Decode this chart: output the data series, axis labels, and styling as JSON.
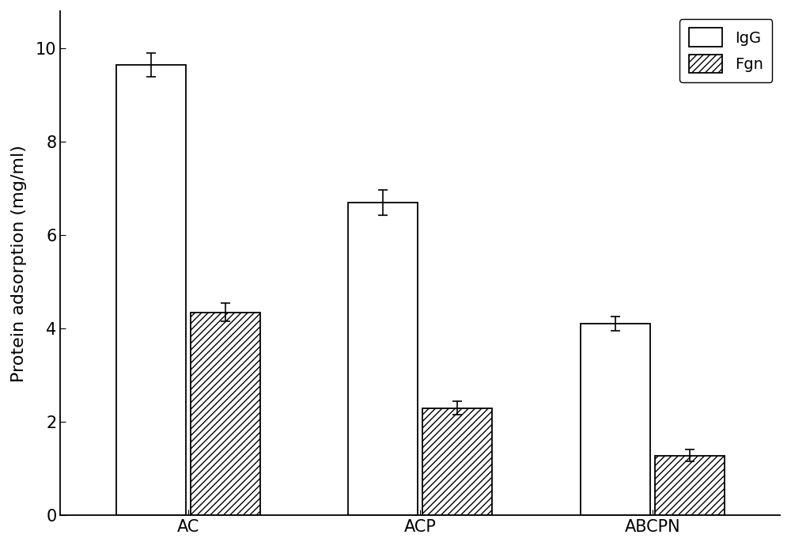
{
  "categories": [
    "AC",
    "ACP",
    "ABCPN"
  ],
  "IgG_values": [
    9.65,
    6.7,
    4.1
  ],
  "IgG_errors": [
    0.25,
    0.27,
    0.15
  ],
  "Fgn_values": [
    4.35,
    2.3,
    1.28
  ],
  "Fgn_errors": [
    0.2,
    0.15,
    0.13
  ],
  "ylabel": "Protein adsorption (mg/ml)",
  "ylim": [
    0,
    10.8
  ],
  "yticks": [
    0,
    2,
    4,
    6,
    8,
    10
  ],
  "bar_width": 0.3,
  "IgG_color": "#ffffff",
  "IgG_edgecolor": "#000000",
  "Fgn_edgecolor": "#000000",
  "legend_labels": [
    "IgG",
    "Fgn"
  ],
  "background_color": "#ffffff",
  "axis_fontsize": 16,
  "tick_fontsize": 15,
  "legend_fontsize": 14
}
